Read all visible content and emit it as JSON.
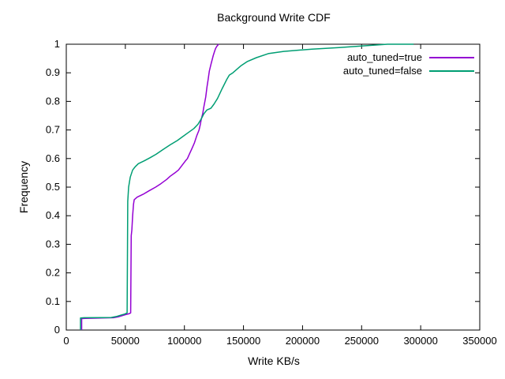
{
  "chart_data": {
    "type": "line",
    "subtype": "cdf-step-curves",
    "title": "Background Write CDF",
    "xlabel": "Write KB/s",
    "ylabel": "Frequency",
    "xlim": [
      0,
      350000
    ],
    "ylim": [
      0,
      1
    ],
    "grid": false,
    "legend_position": "top-right-inside",
    "x_ticks": [
      {
        "v": 0,
        "label": "0"
      },
      {
        "v": 50000,
        "label": "50000"
      },
      {
        "v": 100000,
        "label": "100000"
      },
      {
        "v": 150000,
        "label": "150000"
      },
      {
        "v": 200000,
        "label": "200000"
      },
      {
        "v": 250000,
        "label": "250000"
      },
      {
        "v": 300000,
        "label": "300000"
      },
      {
        "v": 350000,
        "label": "350000"
      }
    ],
    "y_ticks": [
      {
        "v": 0,
        "label": "0"
      },
      {
        "v": 0.1,
        "label": "0.1"
      },
      {
        "v": 0.2,
        "label": "0.2"
      },
      {
        "v": 0.3,
        "label": "0.3"
      },
      {
        "v": 0.4,
        "label": "0.4"
      },
      {
        "v": 0.5,
        "label": "0.5"
      },
      {
        "v": 0.6,
        "label": "0.6"
      },
      {
        "v": 0.7,
        "label": "0.7"
      },
      {
        "v": 0.8,
        "label": "0.8"
      },
      {
        "v": 0.9,
        "label": "0.9"
      },
      {
        "v": 1,
        "label": "1"
      }
    ],
    "series": [
      {
        "name": "auto_tuned=true",
        "color": "#9400d3",
        "points": [
          [
            13000,
            0
          ],
          [
            13000,
            0.04
          ],
          [
            16000,
            0.041
          ],
          [
            40000,
            0.043
          ],
          [
            44000,
            0.046
          ],
          [
            47000,
            0.05
          ],
          [
            50000,
            0.054
          ],
          [
            53000,
            0.057
          ],
          [
            54500,
            0.06
          ],
          [
            55000,
            0.33
          ],
          [
            55500,
            0.35
          ],
          [
            56200,
            0.4
          ],
          [
            56900,
            0.44
          ],
          [
            57500,
            0.456
          ],
          [
            60000,
            0.465
          ],
          [
            65000,
            0.475
          ],
          [
            70000,
            0.487
          ],
          [
            75600,
            0.5
          ],
          [
            80000,
            0.512
          ],
          [
            85000,
            0.527
          ],
          [
            88000,
            0.538
          ],
          [
            92000,
            0.55
          ],
          [
            95000,
            0.56
          ],
          [
            97700,
            0.575
          ],
          [
            100500,
            0.59
          ],
          [
            102500,
            0.6
          ],
          [
            104400,
            0.617
          ],
          [
            106500,
            0.636
          ],
          [
            108500,
            0.655
          ],
          [
            110500,
            0.68
          ],
          [
            112400,
            0.7
          ],
          [
            113500,
            0.72
          ],
          [
            114400,
            0.74
          ],
          [
            115500,
            0.757
          ],
          [
            116400,
            0.78
          ],
          [
            118000,
            0.815
          ],
          [
            119100,
            0.85
          ],
          [
            120000,
            0.875
          ],
          [
            121100,
            0.906
          ],
          [
            122500,
            0.93
          ],
          [
            124400,
            0.96
          ],
          [
            125500,
            0.975
          ],
          [
            126400,
            0.985
          ],
          [
            127500,
            0.993
          ],
          [
            129000,
            1.0
          ]
        ]
      },
      {
        "name": "auto_tuned=false",
        "color": "#009e73",
        "points": [
          [
            12000,
            0
          ],
          [
            12000,
            0.042
          ],
          [
            15000,
            0.043
          ],
          [
            38000,
            0.044
          ],
          [
            43000,
            0.048
          ],
          [
            46000,
            0.052
          ],
          [
            49500,
            0.056
          ],
          [
            51500,
            0.06
          ],
          [
            51800,
            0.3
          ],
          [
            52000,
            0.45
          ],
          [
            52800,
            0.5
          ],
          [
            54200,
            0.535
          ],
          [
            56200,
            0.56
          ],
          [
            58500,
            0.572
          ],
          [
            61000,
            0.582
          ],
          [
            66000,
            0.592
          ],
          [
            71000,
            0.603
          ],
          [
            76000,
            0.615
          ],
          [
            82000,
            0.632
          ],
          [
            88000,
            0.648
          ],
          [
            94000,
            0.663
          ],
          [
            98000,
            0.675
          ],
          [
            103000,
            0.69
          ],
          [
            108000,
            0.705
          ],
          [
            111500,
            0.72
          ],
          [
            114400,
            0.74
          ],
          [
            116500,
            0.757
          ],
          [
            119000,
            0.77
          ],
          [
            122400,
            0.776
          ],
          [
            125000,
            0.79
          ],
          [
            128000,
            0.81
          ],
          [
            132000,
            0.845
          ],
          [
            136000,
            0.878
          ],
          [
            138000,
            0.892
          ],
          [
            141000,
            0.9
          ],
          [
            148000,
            0.925
          ],
          [
            153000,
            0.939
          ],
          [
            161000,
            0.953
          ],
          [
            171000,
            0.967
          ],
          [
            184000,
            0.975
          ],
          [
            208000,
            0.983
          ],
          [
            231000,
            0.988
          ],
          [
            250000,
            0.994
          ],
          [
            272000,
            1.0
          ],
          [
            294000,
            1.0
          ]
        ]
      }
    ],
    "plot_border_color": "#000000",
    "background_color": "#ffffff"
  }
}
